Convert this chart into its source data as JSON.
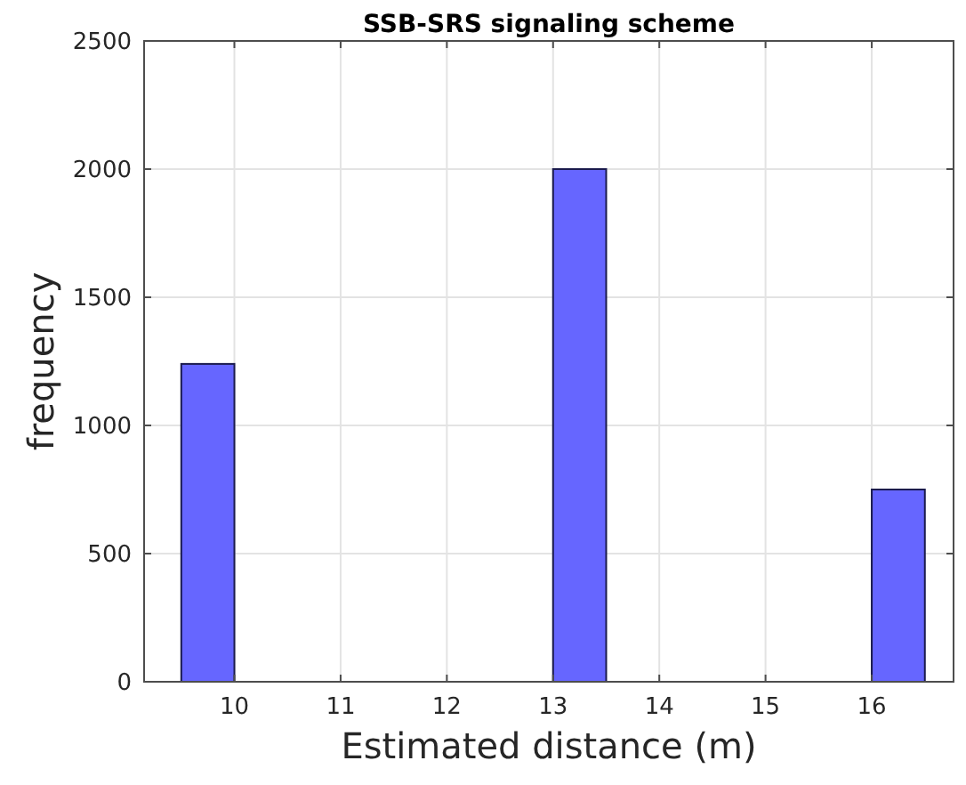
{
  "chart_data": {
    "type": "histogram",
    "title": "SSB-SRS signaling scheme",
    "xlabel": "Estimated distance (m)",
    "ylabel": "frequency",
    "bins": [
      9.5,
      10,
      10.5,
      11,
      11.5,
      12,
      12.5,
      13,
      13.5,
      14,
      14.5,
      15,
      15.5,
      16,
      16.5
    ],
    "values": [
      1240,
      0,
      0,
      0,
      0,
      0,
      0,
      2000,
      0,
      0,
      0,
      0,
      0,
      750
    ],
    "color": "#6666ff",
    "xlim": [
      9.15,
      16.77
    ],
    "xticks": [
      10,
      11,
      12,
      13,
      14,
      15,
      16
    ],
    "ylim": [
      0,
      2500
    ],
    "yticks": [
      0,
      500,
      1000,
      1500,
      2000,
      2500
    ],
    "grid": true
  }
}
